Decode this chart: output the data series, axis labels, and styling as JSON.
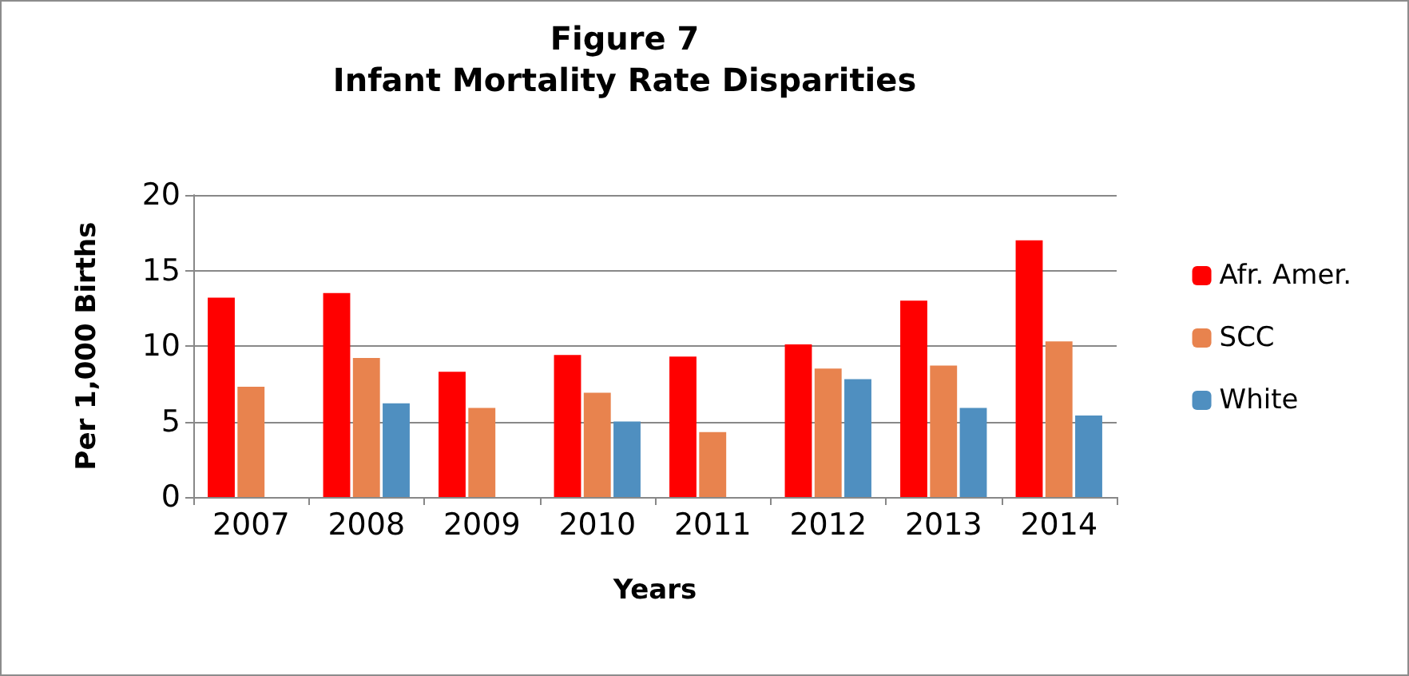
{
  "chart_data": {
    "type": "bar",
    "title": "Figure 7",
    "subtitle": "Infant Mortality Rate Disparities",
    "xlabel": "Years",
    "ylabel": "Per 1,000 Births",
    "categories": [
      "2007",
      "2008",
      "2009",
      "2010",
      "2011",
      "2012",
      "2013",
      "2014"
    ],
    "series": [
      {
        "name": "Afr. Amer.",
        "color": "#ff0000",
        "values": [
          13.2,
          13.5,
          8.3,
          9.4,
          9.3,
          10.1,
          13.0,
          17.0
        ]
      },
      {
        "name": "SCC",
        "color": "#e8834e",
        "values": [
          7.3,
          9.2,
          5.9,
          6.9,
          4.3,
          8.5,
          8.7,
          10.3
        ]
      },
      {
        "name": "White",
        "color": "#4f8fc0",
        "values": [
          null,
          6.2,
          null,
          5.0,
          null,
          7.8,
          5.9,
          5.4
        ]
      }
    ],
    "ylim": [
      0,
      20
    ],
    "yticks": [
      0,
      5,
      10,
      15,
      20
    ],
    "grid": "y",
    "legend": "right"
  }
}
